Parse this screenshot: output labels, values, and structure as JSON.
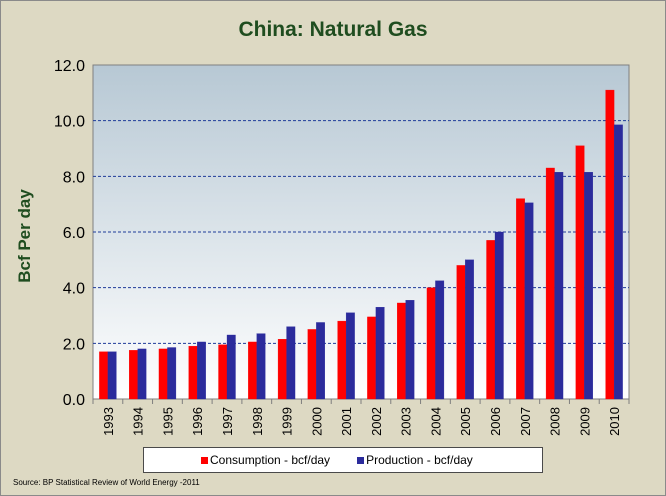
{
  "chart_data": {
    "type": "bar",
    "title": "China: Natural Gas",
    "xlabel": "",
    "ylabel": "Bcf Per day",
    "ylim": [
      0,
      12
    ],
    "y_ticks": [
      "0.0",
      "2.0",
      "4.0",
      "6.0",
      "8.0",
      "10.0",
      "12.0"
    ],
    "grid": "dashed-horizontal",
    "categories": [
      "1993",
      "1994",
      "1995",
      "1996",
      "1997",
      "1998",
      "1999",
      "2000",
      "2001",
      "2002",
      "2003",
      "2004",
      "2005",
      "2006",
      "2007",
      "2008",
      "2009",
      "2010"
    ],
    "series": [
      {
        "name": "Consumption - bcf/day",
        "color": "#ff0000",
        "values": [
          1.7,
          1.75,
          1.8,
          1.9,
          1.95,
          2.05,
          2.15,
          2.5,
          2.8,
          2.95,
          3.45,
          4.0,
          4.8,
          5.7,
          7.2,
          8.3,
          9.1,
          11.1
        ]
      },
      {
        "name": "Production - bcf/day",
        "color": "#2b2b9c",
        "values": [
          1.7,
          1.8,
          1.85,
          2.05,
          2.3,
          2.35,
          2.6,
          2.75,
          3.1,
          3.3,
          3.55,
          4.25,
          5.0,
          6.0,
          7.05,
          8.15,
          8.15,
          9.85
        ]
      }
    ],
    "legend_position": "bottom"
  },
  "source_note": "Source: BP Statistical Review of World Energy -2011"
}
